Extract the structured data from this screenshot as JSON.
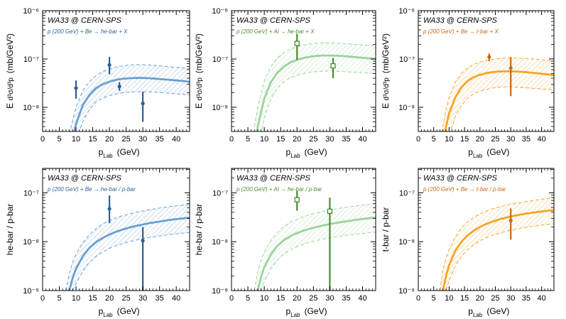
{
  "colors": {
    "blue": "#6a9fd0",
    "blue_dark": "#2e5f93",
    "green": "#9bd39b",
    "green_dark": "#4c8a30",
    "orange": "#f7a426",
    "orange_dark": "#c46a12"
  },
  "chart_data": [
    {
      "type": "line",
      "id": "p0",
      "experiment_label": "WA33 @ CERN-SPS",
      "reaction_label": "p (200 GeV) + Be → he-bar + X",
      "color": "blue",
      "marker": "filled",
      "xlabel": "p",
      "xlabel_sub": "Lab",
      "xlabel_unit": "(GeV)",
      "ylabel": "E d³σ/d³p (mb/GeV²)",
      "ylabel_mode": "xsec",
      "xlim": [
        0,
        44
      ],
      "ylim_log10": [
        -8.5,
        -6
      ],
      "y_ticks": [
        "10⁻⁸",
        "10⁻⁷",
        "10⁻⁶"
      ],
      "x_ticks": [
        "0",
        "5",
        "10",
        "15",
        "20",
        "25",
        "30",
        "35",
        "40"
      ],
      "model_central": {
        "x": [
          8,
          10,
          12,
          14,
          16,
          18,
          20,
          22,
          24,
          26,
          28,
          30,
          32,
          34,
          36,
          38,
          40,
          42,
          44
        ],
        "y": [
          1e-09,
          4.5e-09,
          1.1e-08,
          1.8e-08,
          2.5e-08,
          3e-08,
          3.4e-08,
          3.7e-08,
          3.9e-08,
          4e-08,
          4.05e-08,
          4.05e-08,
          4e-08,
          3.9e-08,
          3.8e-08,
          3.7e-08,
          3.6e-08,
          3.5e-08,
          3.35e-08
        ]
      },
      "model_upper": {
        "x": [
          8,
          10,
          12,
          14,
          16,
          18,
          20,
          22,
          24,
          26,
          28,
          30,
          32,
          34,
          36,
          38,
          40,
          42,
          44
        ],
        "y": [
          2.8e-09,
          1e-08,
          2.2e-08,
          3.4e-08,
          4.5e-08,
          5.5e-08,
          6.2e-08,
          6.8e-08,
          7.2e-08,
          7.5e-08,
          7.6e-08,
          7.6e-08,
          7.5e-08,
          7.3e-08,
          7.1e-08,
          6.9e-08,
          6.7e-08,
          6.5e-08,
          6.3e-08
        ]
      },
      "model_lower": {
        "x": [
          9,
          10,
          12,
          14,
          16,
          18,
          20,
          22,
          24,
          26,
          28,
          30,
          32,
          34,
          36,
          38,
          40,
          42,
          44
        ],
        "y": [
          1e-09,
          2e-09,
          5e-09,
          9e-09,
          1.3e-08,
          1.55e-08,
          1.75e-08,
          1.9e-08,
          2e-08,
          2.05e-08,
          2.1e-08,
          2.1e-08,
          2.08e-08,
          2.05e-08,
          2e-08,
          1.95e-08,
          1.9e-08,
          1.85e-08,
          1.8e-08
        ]
      },
      "points": [
        {
          "x": 10,
          "y": 2.5e-08,
          "ylo": 1.5e-08,
          "yhi": 3.6e-08
        },
        {
          "x": 20,
          "y": 7.5e-08,
          "ylo": 4.8e-08,
          "yhi": 1.1e-07
        },
        {
          "x": 23,
          "y": 2.7e-08,
          "ylo": 2.2e-08,
          "yhi": 3.3e-08
        },
        {
          "x": 30,
          "y": 1.2e-08,
          "ylo": 5e-09,
          "yhi": 2.1e-08
        }
      ]
    },
    {
      "type": "line",
      "id": "p1",
      "experiment_label": "WA33 @ CERN-SPS",
      "reaction_label": "p (200 GeV) + Al → he-bar + X",
      "color": "green",
      "marker": "open",
      "xlabel": "p",
      "xlabel_sub": "Lab",
      "xlabel_unit": "(GeV)",
      "ylabel": "E d³σ/d³p (mb/GeV²)",
      "ylabel_mode": "xsec",
      "xlim": [
        0,
        44
      ],
      "ylim_log10": [
        -8.5,
        -6
      ],
      "y_ticks": [
        "10⁻⁸",
        "10⁻⁷",
        "10⁻⁶"
      ],
      "x_ticks": [
        "0",
        "5",
        "10",
        "15",
        "20",
        "25",
        "30",
        "35",
        "40"
      ],
      "model_central": {
        "x": [
          7,
          8,
          10,
          12,
          14,
          16,
          18,
          20,
          22,
          24,
          26,
          28,
          30,
          32,
          34,
          36,
          38,
          40,
          42,
          44
        ],
        "y": [
          1.2e-09,
          4e-09,
          1.5e-08,
          3.3e-08,
          5.2e-08,
          7e-08,
          8.5e-08,
          9.6e-08,
          1.05e-07,
          1.12e-07,
          1.16e-07,
          1.18e-07,
          1.18e-07,
          1.17e-07,
          1.15e-07,
          1.12e-07,
          1.09e-07,
          1.06e-07,
          1.03e-07,
          1e-07
        ]
      },
      "model_upper": {
        "x": [
          7,
          8,
          10,
          12,
          14,
          16,
          18,
          20,
          22,
          24,
          26,
          28,
          30,
          32,
          34,
          36,
          38,
          40,
          42,
          44
        ],
        "y": [
          4e-09,
          1e-08,
          3.5e-08,
          7e-08,
          1.05e-07,
          1.35e-07,
          1.6e-07,
          1.8e-07,
          1.95e-07,
          2.05e-07,
          2.12e-07,
          2.15e-07,
          2.15e-07,
          2.13e-07,
          2.1e-07,
          2.05e-07,
          2e-07,
          1.95e-07,
          1.9e-07,
          1.85e-07
        ]
      },
      "model_lower": {
        "x": [
          8,
          10,
          12,
          14,
          16,
          18,
          20,
          22,
          24,
          26,
          28,
          30,
          32,
          34,
          36,
          38,
          40,
          42,
          44
        ],
        "y": [
          1.2e-09,
          6e-09,
          1.5e-08,
          2.5e-08,
          3.4e-08,
          4.1e-08,
          4.6e-08,
          5e-08,
          5.3e-08,
          5.5e-08,
          5.6e-08,
          5.65e-08,
          5.6e-08,
          5.5e-08,
          5.4e-08,
          5.3e-08,
          5.2e-08,
          5.1e-08,
          5e-08
        ]
      },
      "points": [
        {
          "x": 20,
          "y": 2.1e-07,
          "ylo": 9.5e-08,
          "yhi": 3.3e-07
        },
        {
          "x": 31,
          "y": 7.2e-08,
          "ylo": 4e-08,
          "yhi": 1.05e-07
        }
      ]
    },
    {
      "type": "line",
      "id": "p2",
      "experiment_label": "WA33 @ CERN-SPS",
      "reaction_label": "p (200 GeV) + Be → t-bar + X",
      "color": "orange",
      "marker": "filled",
      "xlabel": "p",
      "xlabel_sub": "Lab",
      "xlabel_unit": "(GeV)",
      "ylabel": "E d³σ/d³p (mb/GeV²)",
      "ylabel_mode": "xsec",
      "xlim": [
        0,
        44
      ],
      "ylim_log10": [
        -8.5,
        -6
      ],
      "y_ticks": [
        "10⁻⁸",
        "10⁻⁷",
        "10⁻⁶"
      ],
      "x_ticks": [
        "0",
        "5",
        "10",
        "15",
        "20",
        "25",
        "30",
        "35",
        "40"
      ],
      "model_central": {
        "x": [
          8,
          9,
          10,
          12,
          14,
          16,
          18,
          20,
          22,
          24,
          26,
          28,
          30,
          32,
          34,
          36,
          38,
          40,
          42,
          44
        ],
        "y": [
          1.5e-09,
          4e-09,
          7.5e-09,
          1.6e-08,
          2.6e-08,
          3.5e-08,
          4.2e-08,
          4.7e-08,
          5.1e-08,
          5.35e-08,
          5.5e-08,
          5.55e-08,
          5.55e-08,
          5.5e-08,
          5.4e-08,
          5.25e-08,
          5.1e-08,
          4.95e-08,
          4.8e-08,
          4.6e-08
        ]
      },
      "model_upper": {
        "x": [
          7,
          8,
          9,
          10,
          12,
          14,
          16,
          18,
          20,
          22,
          24,
          26,
          28,
          30,
          32,
          34,
          36,
          38,
          40,
          42,
          44
        ],
        "y": [
          1e-09,
          4e-09,
          9e-09,
          1.6e-08,
          3.3e-08,
          5e-08,
          6.5e-08,
          7.7e-08,
          8.6e-08,
          9.3e-08,
          9.8e-08,
          1.02e-07,
          1.04e-07,
          1.05e-07,
          1.04e-07,
          1.03e-07,
          1.01e-07,
          9.9e-08,
          9.6e-08,
          9.3e-08,
          9e-08
        ]
      },
      "model_lower": {
        "x": [
          9,
          10,
          12,
          14,
          16,
          18,
          20,
          22,
          24,
          26,
          28,
          30,
          32,
          34,
          36,
          38,
          40,
          42,
          44
        ],
        "y": [
          1.2e-09,
          2.5e-09,
          6.5e-09,
          1.1e-08,
          1.55e-08,
          1.9e-08,
          2.15e-08,
          2.35e-08,
          2.5e-08,
          2.6e-08,
          2.65e-08,
          2.65e-08,
          2.6e-08,
          2.55e-08,
          2.5e-08,
          2.45e-08,
          2.4e-08,
          2.35e-08,
          2.3e-08
        ]
      },
      "points": [
        {
          "x": 23,
          "y": 1.1e-07,
          "ylo": 9e-08,
          "yhi": 1.3e-07
        },
        {
          "x": 30,
          "y": 6.5e-08,
          "ylo": 1.7e-08,
          "yhi": 1.1e-07
        }
      ]
    },
    {
      "type": "line",
      "id": "p3",
      "experiment_label": "WA33 @ CERN-SPS",
      "reaction_label": "p (200 GeV) + Be → he-bar / p-bar",
      "color": "blue",
      "marker": "filled",
      "xlabel": "p",
      "xlabel_sub": "Lab",
      "xlabel_unit": "(GeV)",
      "ylabel": "he-bar / p-bar",
      "ylabel_mode": "ratio",
      "xlim": [
        0,
        44
      ],
      "ylim_log10": [
        -9,
        -6.5
      ],
      "y_ticks": [
        "10⁻⁹",
        "10⁻⁸",
        "10⁻⁷"
      ],
      "x_ticks": [
        "0",
        "5",
        "10",
        "15",
        "20",
        "25",
        "30",
        "35",
        "40"
      ],
      "model_central": {
        "x": [
          8,
          9,
          10,
          12,
          14,
          16,
          18,
          20,
          22,
          24,
          26,
          28,
          30,
          32,
          34,
          36,
          38,
          40,
          42,
          44
        ],
        "y": [
          1e-09,
          1.8e-09,
          2.8e-09,
          5e-09,
          7.5e-09,
          9.8e-09,
          1.2e-08,
          1.4e-08,
          1.6e-08,
          1.78e-08,
          1.95e-08,
          2.1e-08,
          2.25e-08,
          2.4e-08,
          2.52e-08,
          2.65e-08,
          2.78e-08,
          2.9e-08,
          3e-08,
          3.1e-08
        ]
      },
      "model_upper": {
        "x": [
          7,
          8,
          9,
          10,
          12,
          14,
          16,
          18,
          20,
          22,
          24,
          26,
          28,
          30,
          32,
          34,
          36,
          38,
          40,
          42,
          44
        ],
        "y": [
          1e-09,
          2.2e-09,
          3.8e-09,
          5.5e-09,
          9.5e-09,
          1.4e-08,
          1.85e-08,
          2.3e-08,
          2.7e-08,
          3.05e-08,
          3.4e-08,
          3.7e-08,
          4e-08,
          4.25e-08,
          4.5e-08,
          4.75e-08,
          5e-08,
          5.2e-08,
          5.4e-08,
          5.6e-08,
          5.8e-08
        ]
      },
      "model_lower": {
        "x": [
          9,
          10,
          12,
          14,
          16,
          18,
          20,
          22,
          24,
          26,
          28,
          30,
          32,
          34,
          36,
          38,
          40,
          42,
          44
        ],
        "y": [
          1e-09,
          1.4e-09,
          2.5e-09,
          3.8e-09,
          5e-09,
          6.2e-09,
          7.3e-09,
          8.3e-09,
          9.2e-09,
          1e-08,
          1.08e-08,
          1.15e-08,
          1.22e-08,
          1.28e-08,
          1.34e-08,
          1.4e-08,
          1.45e-08,
          1.5e-08,
          1.55e-08
        ]
      },
      "points": [
        {
          "x": 20,
          "y": 4.7e-08,
          "ylo": 2.4e-08,
          "yhi": 8.8e-08
        },
        {
          "x": 30,
          "y": 1.05e-08,
          "ylo": 1e-09,
          "yhi": 2e-08
        }
      ]
    },
    {
      "type": "line",
      "id": "p4",
      "experiment_label": "WA33 @ CERN-SPS",
      "reaction_label": "p (200 GeV) + Al → he-bar / p-bar",
      "color": "green",
      "marker": "open",
      "xlabel": "p",
      "xlabel_sub": "Lab",
      "xlabel_unit": "(GeV)",
      "ylabel": "he-bar / p-bar",
      "ylabel_mode": "ratio",
      "xlim": [
        0,
        44
      ],
      "ylim_log10": [
        -9,
        -6.5
      ],
      "y_ticks": [
        "10⁻⁹",
        "10⁻⁸",
        "10⁻⁷"
      ],
      "x_ticks": [
        "0",
        "5",
        "10",
        "15",
        "20",
        "25",
        "30",
        "35",
        "40"
      ],
      "model_central": {
        "x": [
          8,
          9,
          10,
          12,
          14,
          16,
          18,
          20,
          22,
          24,
          26,
          28,
          30,
          32,
          34,
          36,
          38,
          40,
          42,
          44
        ],
        "y": [
          1e-09,
          1.9e-09,
          3e-09,
          5.5e-09,
          8.2e-09,
          1.08e-08,
          1.3e-08,
          1.5e-08,
          1.68e-08,
          1.85e-08,
          2e-08,
          2.15e-08,
          2.3e-08,
          2.42e-08,
          2.55e-08,
          2.67e-08,
          2.8e-08,
          2.92e-08,
          3.02e-08,
          3.12e-08
        ]
      },
      "model_upper": {
        "x": [
          7,
          8,
          9,
          10,
          12,
          14,
          16,
          18,
          20,
          22,
          24,
          26,
          28,
          30,
          32,
          34,
          36,
          38,
          40,
          42,
          44
        ],
        "y": [
          1e-09,
          2.4e-09,
          4.2e-09,
          6.2e-09,
          1.05e-08,
          1.55e-08,
          2.05e-08,
          2.5e-08,
          2.9e-08,
          3.25e-08,
          3.6e-08,
          3.9e-08,
          4.2e-08,
          4.45e-08,
          4.7e-08,
          4.95e-08,
          5.2e-08,
          5.4e-08,
          5.6e-08,
          5.8e-08,
          6e-08
        ]
      },
      "model_lower": {
        "x": [
          9,
          10,
          12,
          14,
          16,
          18,
          20,
          22,
          24,
          26,
          28,
          30,
          32,
          34,
          36,
          38,
          40,
          42,
          44
        ],
        "y": [
          1e-09,
          1.5e-09,
          2.8e-09,
          4.2e-09,
          5.6e-09,
          6.8e-09,
          7.9e-09,
          8.9e-09,
          9.8e-09,
          1.06e-08,
          1.13e-08,
          1.2e-08,
          1.26e-08,
          1.32e-08,
          1.38e-08,
          1.43e-08,
          1.48e-08,
          1.53e-08,
          1.57e-08
        ]
      },
      "points": [
        {
          "x": 20,
          "y": 7.2e-08,
          "ylo": 4.3e-08,
          "yhi": 1.1e-07
        },
        {
          "x": 30,
          "y": 4.2e-08,
          "ylo": 1e-09,
          "yhi": 8e-08
        }
      ]
    },
    {
      "type": "line",
      "id": "p5",
      "experiment_label": "WA33 @ CERN-SPS",
      "reaction_label": "p (200 GeV) + Be → t-bar / p-bar",
      "color": "orange",
      "marker": "filled",
      "xlabel": "p",
      "xlabel_sub": "Lab",
      "xlabel_unit": "(GeV)",
      "ylabel": "t-bar / p-bar",
      "ylabel_mode": "ratio",
      "xlim": [
        0,
        44
      ],
      "ylim_log10": [
        -9,
        -6.5
      ],
      "y_ticks": [
        "10⁻⁹",
        "10⁻⁸",
        "10⁻⁷"
      ],
      "x_ticks": [
        "0",
        "5",
        "10",
        "15",
        "20",
        "25",
        "30",
        "35",
        "40"
      ],
      "model_central": {
        "x": [
          8,
          9,
          10,
          12,
          14,
          16,
          18,
          20,
          22,
          24,
          26,
          28,
          30,
          32,
          34,
          36,
          38,
          40,
          42,
          44
        ],
        "y": [
          1e-09,
          2e-09,
          3.3e-09,
          6.5e-09,
          1e-08,
          1.35e-08,
          1.68e-08,
          2e-08,
          2.3e-08,
          2.57e-08,
          2.82e-08,
          3.05e-08,
          3.27e-08,
          3.47e-08,
          3.66e-08,
          3.84e-08,
          4e-08,
          4.15e-08,
          4.3e-08,
          4.42e-08
        ]
      },
      "model_upper": {
        "x": [
          7,
          8,
          9,
          10,
          12,
          14,
          16,
          18,
          20,
          22,
          24,
          26,
          28,
          30,
          32,
          34,
          36,
          38,
          40,
          42,
          44
        ],
        "y": [
          1e-09,
          2.6e-09,
          4.6e-09,
          7e-09,
          1.25e-08,
          1.9e-08,
          2.55e-08,
          3.15e-08,
          3.7e-08,
          4.2e-08,
          4.7e-08,
          5.1e-08,
          5.5e-08,
          5.85e-08,
          6.2e-08,
          6.5e-08,
          6.8e-08,
          7.1e-08,
          7.4e-08,
          7.65e-08,
          7.9e-08
        ]
      },
      "model_lower": {
        "x": [
          9,
          10,
          12,
          14,
          16,
          18,
          20,
          22,
          24,
          26,
          28,
          30,
          32,
          34,
          36,
          38,
          40,
          42,
          44
        ],
        "y": [
          1e-09,
          1.6e-09,
          3.2e-09,
          5e-09,
          6.9e-09,
          8.7e-09,
          1.04e-08,
          1.2e-08,
          1.35e-08,
          1.48e-08,
          1.6e-08,
          1.72e-08,
          1.82e-08,
          1.92e-08,
          2.01e-08,
          2.1e-08,
          2.18e-08,
          2.26e-08,
          2.33e-08
        ]
      },
      "points": [
        {
          "x": 30,
          "y": 2.7e-08,
          "ylo": 1.1e-08,
          "yhi": 4.8e-08
        }
      ]
    }
  ]
}
